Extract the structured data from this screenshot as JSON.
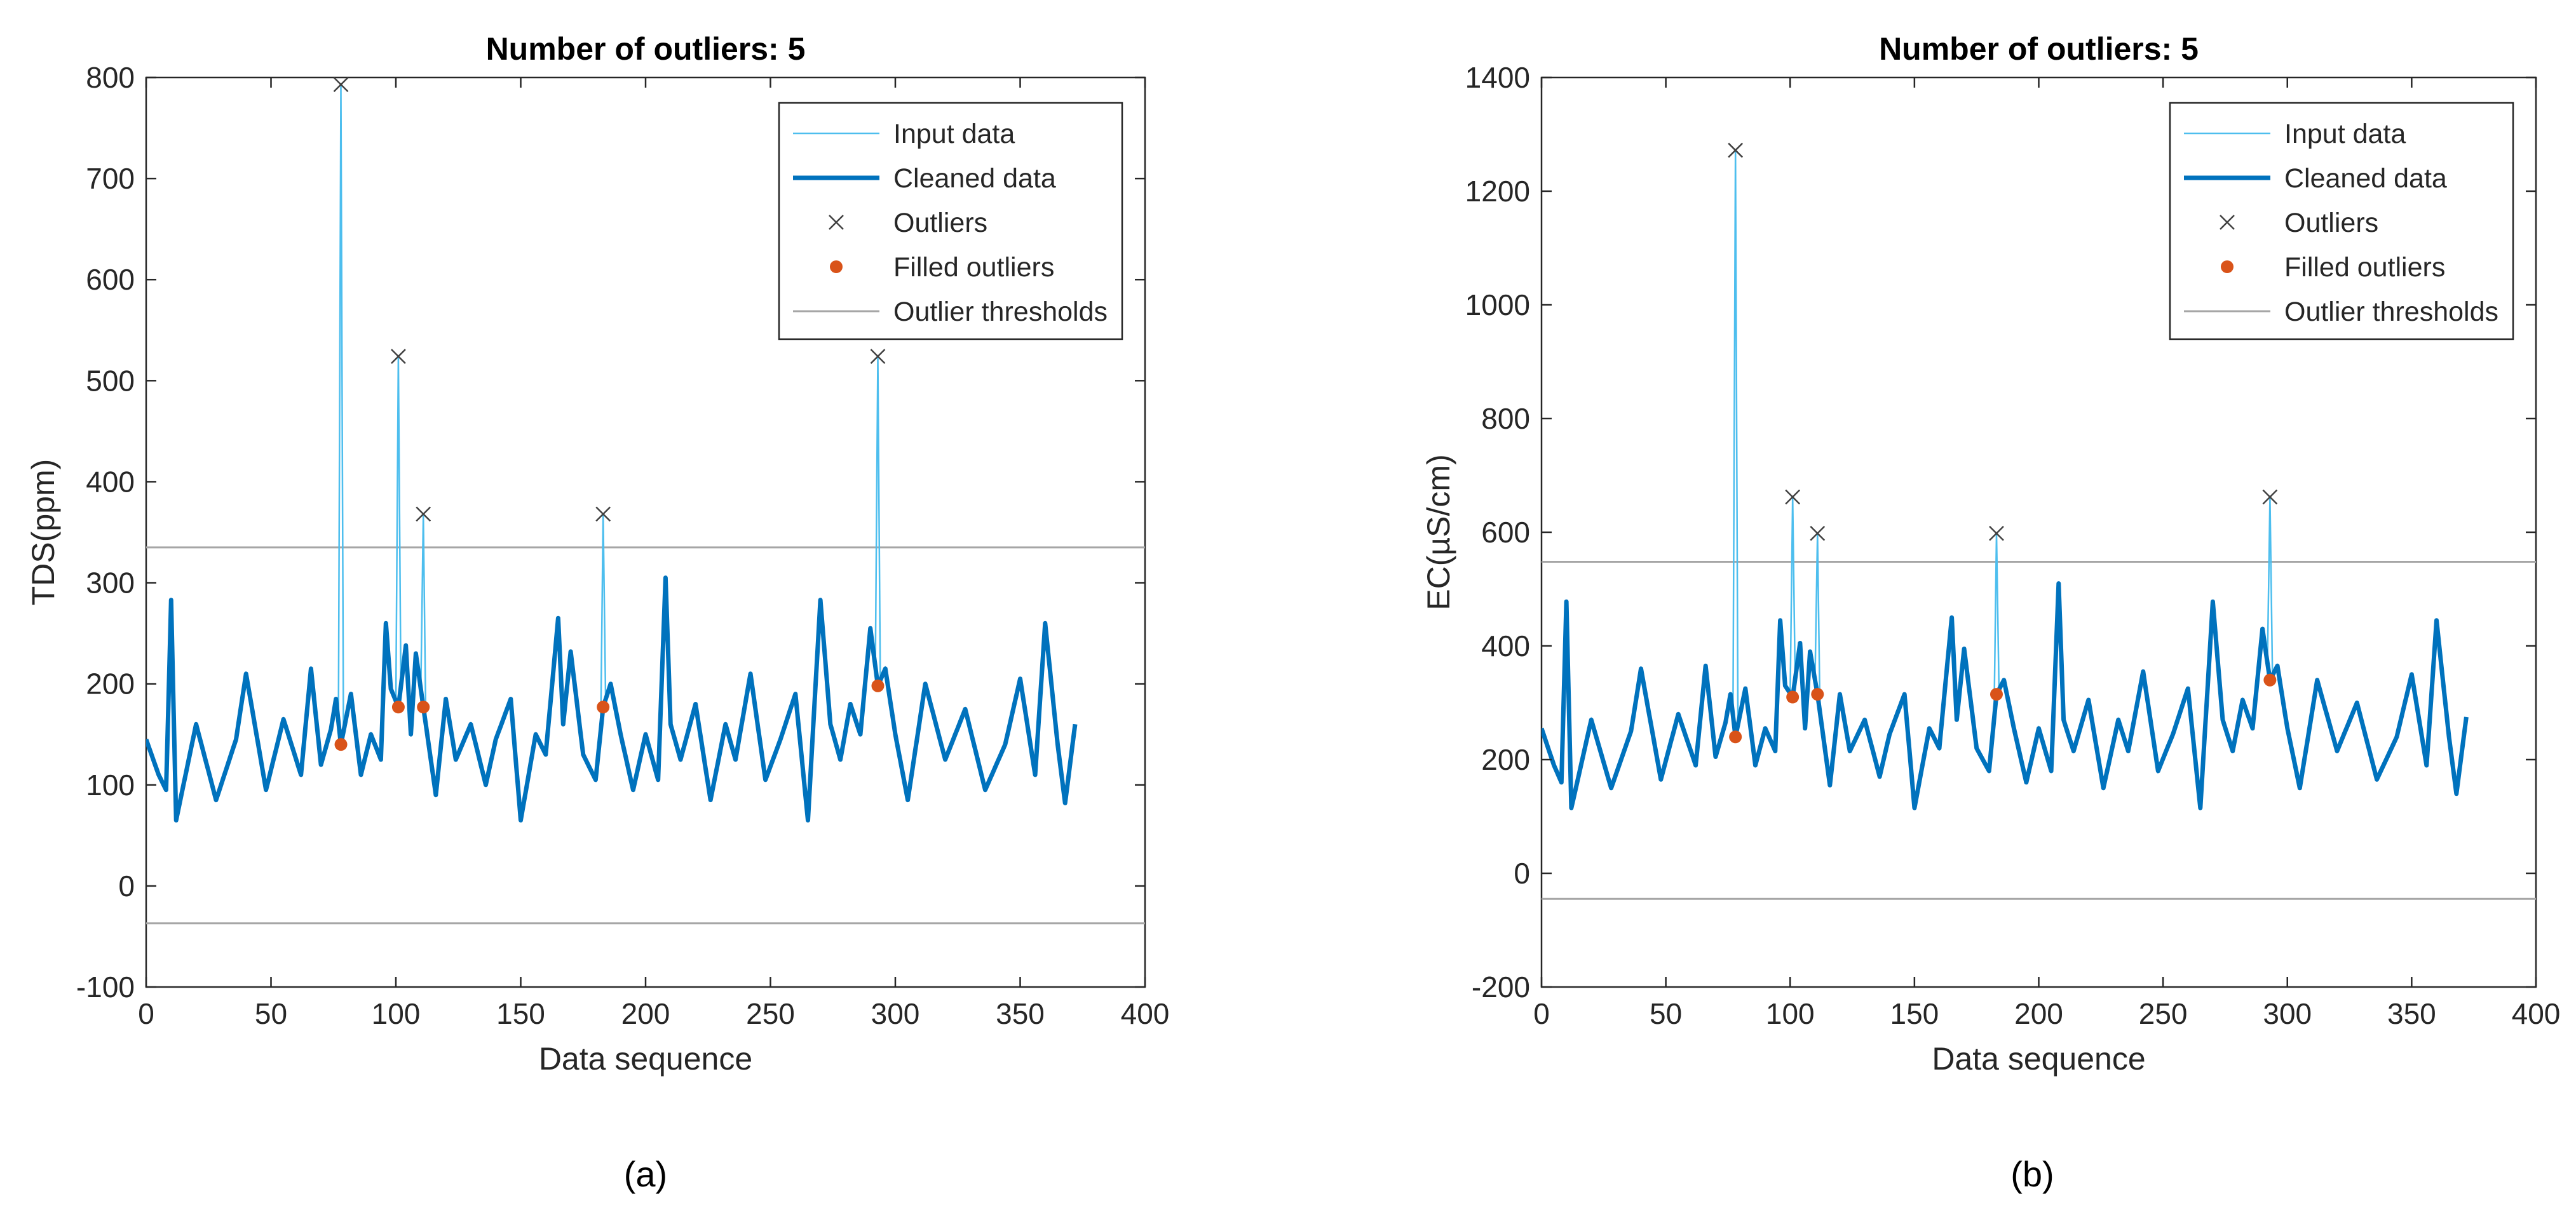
{
  "chart_data": [
    {
      "type": "line",
      "panel_label": "(a)",
      "title": "Number of outliers: 5",
      "xlabel": "Data sequence",
      "ylabel": "TDS(ppm)",
      "xlim": [
        0,
        400
      ],
      "ylim": [
        -100,
        800
      ],
      "xticks": [
        0,
        50,
        100,
        150,
        200,
        250,
        300,
        350,
        400
      ],
      "yticks": [
        -100,
        0,
        100,
        200,
        300,
        400,
        500,
        600,
        700,
        800
      ],
      "grid": false,
      "legend_position": "top-right",
      "legend": [
        "Input data",
        "Cleaned data",
        "Outliers",
        "Filled outliers",
        "Outlier thresholds"
      ],
      "thresholds": [
        335,
        -37
      ],
      "outliers": {
        "x": [
          78,
          101,
          111,
          183,
          293
        ],
        "y": [
          793,
          524,
          368,
          368,
          524
        ]
      },
      "filled_outliers": {
        "x": [
          78,
          101,
          111,
          183,
          293
        ],
        "y": [
          140,
          177,
          177,
          177,
          198
        ]
      },
      "cleaned_key_points": {
        "x": [
          0,
          5,
          8,
          10,
          12,
          20,
          28,
          36,
          40,
          48,
          55,
          62,
          66,
          70,
          74,
          76,
          78,
          82,
          86,
          90,
          94,
          96,
          98,
          101,
          104,
          106,
          108,
          111,
          116,
          120,
          124,
          130,
          136,
          140,
          146,
          150,
          156,
          160,
          165,
          167,
          170,
          175,
          180,
          183,
          186,
          190,
          195,
          200,
          205,
          208,
          210,
          214,
          220,
          226,
          232,
          236,
          242,
          248,
          254,
          260,
          265,
          270,
          274,
          278,
          282,
          286,
          290,
          293,
          296,
          300,
          305,
          312,
          320,
          328,
          336,
          344,
          350,
          356,
          360,
          365,
          368,
          372
        ],
        "y": [
          145,
          110,
          95,
          283,
          65,
          160,
          85,
          145,
          210,
          95,
          165,
          110,
          215,
          120,
          155,
          185,
          140,
          190,
          110,
          150,
          125,
          260,
          195,
          177,
          238,
          150,
          230,
          177,
          90,
          185,
          125,
          160,
          100,
          145,
          185,
          65,
          150,
          130,
          265,
          160,
          232,
          130,
          105,
          177,
          200,
          150,
          95,
          150,
          105,
          305,
          160,
          125,
          180,
          85,
          160,
          125,
          210,
          105,
          145,
          190,
          65,
          283,
          160,
          125,
          180,
          150,
          255,
          198,
          215,
          150,
          85,
          200,
          125,
          175,
          95,
          140,
          205,
          110,
          260,
          140,
          82,
          160
        ]
      }
    },
    {
      "type": "line",
      "panel_label": "(b)",
      "title": "Number of outliers: 5",
      "xlabel": "Data sequence",
      "ylabel": "EC(µS/cm)",
      "xlim": [
        0,
        400
      ],
      "ylim": [
        -200,
        1400
      ],
      "xticks": [
        0,
        50,
        100,
        150,
        200,
        250,
        300,
        350,
        400
      ],
      "yticks": [
        -200,
        0,
        200,
        400,
        600,
        800,
        1000,
        1200,
        1400
      ],
      "grid": false,
      "legend_position": "top-right",
      "legend": [
        "Input data",
        "Cleaned data",
        "Outliers",
        "Filled outliers",
        "Outlier thresholds"
      ],
      "thresholds": [
        548,
        -45
      ],
      "outliers": {
        "x": [
          78,
          101,
          111,
          183,
          293
        ],
        "y": [
          1272,
          662,
          598,
          598,
          662
        ]
      },
      "filled_outliers": {
        "x": [
          78,
          101,
          111,
          183,
          293
        ],
        "y": [
          240,
          310,
          315,
          315,
          340
        ]
      },
      "cleaned_key_points": {
        "x": [
          0,
          5,
          8,
          10,
          12,
          20,
          28,
          36,
          40,
          48,
          55,
          62,
          66,
          70,
          74,
          76,
          78,
          82,
          86,
          90,
          94,
          96,
          98,
          101,
          104,
          106,
          108,
          111,
          116,
          120,
          124,
          130,
          136,
          140,
          146,
          150,
          156,
          160,
          165,
          167,
          170,
          175,
          180,
          183,
          186,
          190,
          195,
          200,
          205,
          208,
          210,
          214,
          220,
          226,
          232,
          236,
          242,
          248,
          254,
          260,
          265,
          270,
          274,
          278,
          282,
          286,
          290,
          293,
          296,
          300,
          305,
          312,
          320,
          328,
          336,
          344,
          350,
          356,
          360,
          365,
          368,
          372
        ],
        "y": [
          255,
          190,
          160,
          478,
          115,
          270,
          150,
          250,
          360,
          165,
          280,
          190,
          365,
          205,
          265,
          315,
          240,
          325,
          190,
          255,
          215,
          445,
          330,
          310,
          405,
          255,
          390,
          315,
          155,
          315,
          215,
          270,
          170,
          245,
          315,
          115,
          255,
          220,
          450,
          270,
          395,
          220,
          180,
          315,
          340,
          255,
          160,
          255,
          180,
          510,
          270,
          215,
          305,
          150,
          270,
          215,
          355,
          180,
          245,
          325,
          115,
          478,
          270,
          215,
          305,
          255,
          430,
          340,
          365,
          255,
          150,
          340,
          215,
          300,
          165,
          240,
          350,
          190,
          445,
          240,
          140,
          275
        ]
      }
    }
  ]
}
